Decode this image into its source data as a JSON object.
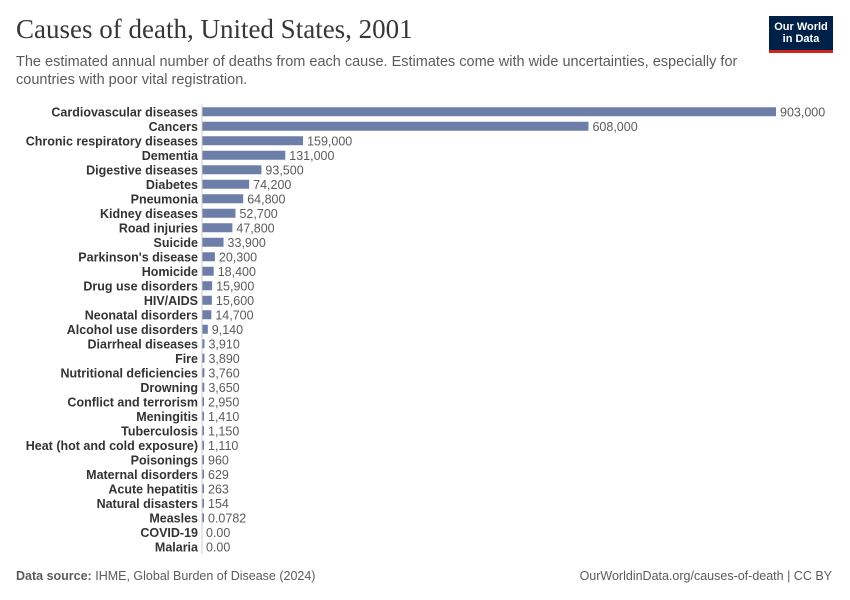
{
  "header": {
    "title": "Causes of death, United States, 2001",
    "subtitle": "The estimated annual number of deaths from each cause. Estimates come with wide uncertainties, especially for countries with poor vital registration."
  },
  "logo": {
    "line1": "Our World",
    "line2": "in Data"
  },
  "footer": {
    "source_label": "Data source:",
    "source_text": "IHME, Global Burden of Disease (2024)",
    "right_text": "OurWorldinData.org/causes-of-death | CC BY"
  },
  "colors": {
    "bar": "#6d7fa8",
    "axis": "#cccccc",
    "label": "#333333",
    "value": "#5b5b5b"
  },
  "chart_data": {
    "type": "bar",
    "orientation": "horizontal",
    "title": "Causes of death, United States, 2001",
    "categories": [
      "Cardiovascular diseases",
      "Cancers",
      "Chronic respiratory diseases",
      "Dementia",
      "Digestive diseases",
      "Diabetes",
      "Pneumonia",
      "Kidney diseases",
      "Road injuries",
      "Suicide",
      "Parkinson's disease",
      "Homicide",
      "Drug use disorders",
      "HIV/AIDS",
      "Neonatal disorders",
      "Alcohol use disorders",
      "Diarrheal diseases",
      "Fire",
      "Nutritional deficiencies",
      "Drowning",
      "Conflict and terrorism",
      "Meningitis",
      "Tuberculosis",
      "Heat (hot and cold exposure)",
      "Poisonings",
      "Maternal disorders",
      "Acute hepatitis",
      "Natural disasters",
      "Measles",
      "COVID-19",
      "Malaria"
    ],
    "values": [
      903000,
      608000,
      159000,
      131000,
      93500,
      74200,
      64800,
      52700,
      47800,
      33900,
      20300,
      18400,
      15900,
      15600,
      14700,
      9140,
      3910,
      3890,
      3760,
      3650,
      2950,
      1410,
      1150,
      1110,
      960,
      629,
      263,
      154,
      0.0782,
      0.0,
      0.0
    ],
    "value_labels": [
      "903,000",
      "608,000",
      "159,000",
      "131,000",
      "93,500",
      "74,200",
      "64,800",
      "52,700",
      "47,800",
      "33,900",
      "20,300",
      "18,400",
      "15,900",
      "15,600",
      "14,700",
      "9,140",
      "3,910",
      "3,890",
      "3,760",
      "3,650",
      "2,950",
      "1,410",
      "1,150",
      "1,110",
      "960",
      "629",
      "263",
      "154",
      "0.0782",
      "0.00",
      "0.00"
    ],
    "xlim": [
      0,
      903000
    ],
    "grid": false,
    "legend": "none"
  }
}
